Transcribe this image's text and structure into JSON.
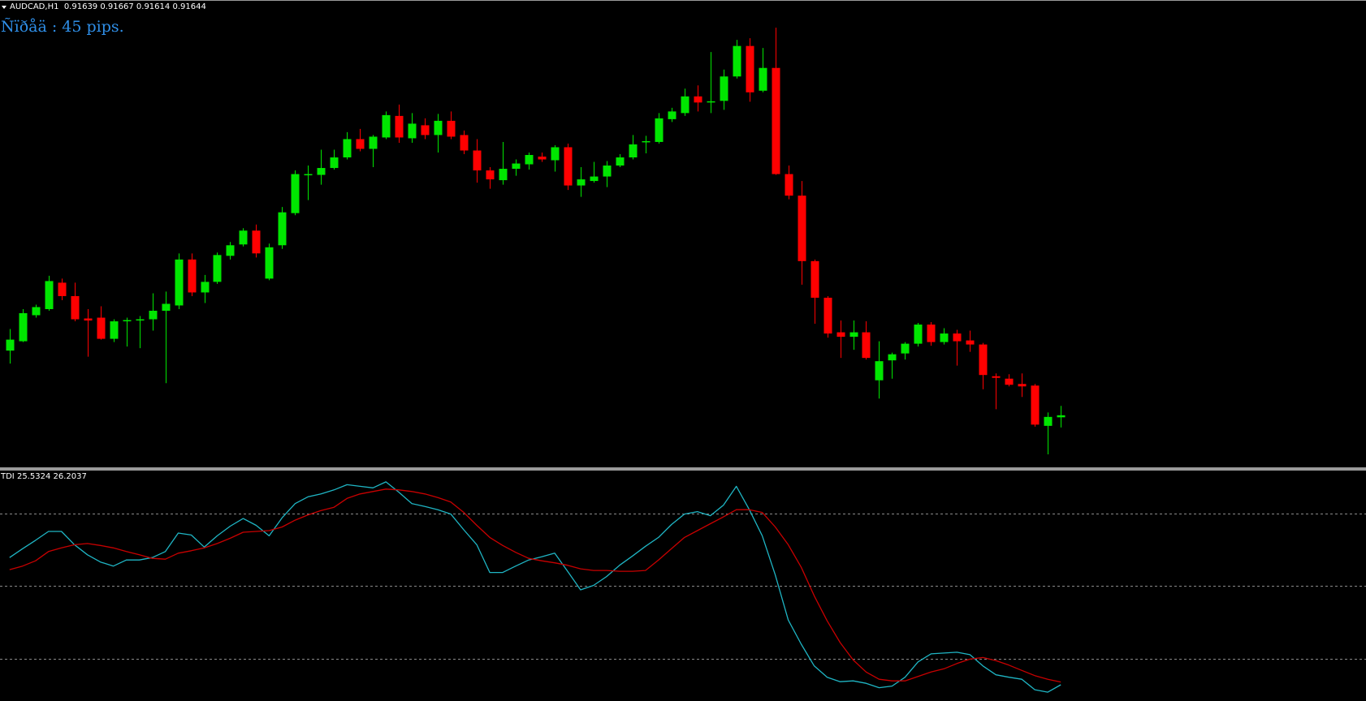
{
  "header": {
    "symbol": "AUDCAD,H1"
  },
  "spread_label": "Ñïðåä : 45 pips.",
  "chart_data": [
    {
      "type": "candlestick",
      "up_color": "#00e600",
      "down_color": "#ff0000",
      "ylim": [
        0.91516,
        0.92665
      ],
      "open": [
        0.91803,
        0.91826,
        0.9189,
        0.91905,
        0.9197,
        0.91937,
        0.91882,
        0.91884,
        0.91832,
        0.91877,
        0.91877,
        0.9188,
        0.91901,
        0.91914,
        0.92027,
        0.91946,
        0.91972,
        0.92036,
        0.92064,
        0.92098,
        0.9198,
        0.92062,
        0.92141,
        0.92235,
        0.92235,
        0.92252,
        0.92278,
        0.92323,
        0.92299,
        0.92327,
        0.9238,
        0.92325,
        0.92357,
        0.92333,
        0.92368,
        0.92333,
        0.92295,
        0.92246,
        0.92222,
        0.9225,
        0.92261,
        0.9228,
        0.92271,
        0.92303,
        0.92209,
        0.9222,
        0.92231,
        0.92258,
        0.92278,
        0.92316,
        0.92316,
        0.92372,
        0.92387,
        0.92428,
        0.92415,
        0.92417,
        0.92477,
        0.92552,
        0.92442,
        0.92498,
        0.92237,
        0.92184,
        0.92023,
        0.91933,
        0.91848,
        0.91837,
        0.91848,
        0.9173,
        0.91779,
        0.91796,
        0.9182,
        0.91867,
        0.91824,
        0.91845,
        0.91828,
        0.91818,
        0.9174,
        0.91734,
        0.91721,
        0.91717,
        0.91618,
        0.91639
      ],
      "high": [
        0.91856,
        0.91905,
        0.91916,
        0.91987,
        0.9198,
        0.9197,
        0.91905,
        0.91912,
        0.9188,
        0.91884,
        0.91888,
        0.91944,
        0.91948,
        0.92042,
        0.92042,
        0.91989,
        0.92044,
        0.9207,
        0.92104,
        0.92113,
        0.92066,
        0.92156,
        0.92246,
        0.92258,
        0.92297,
        0.92297,
        0.9234,
        0.92348,
        0.92333,
        0.92391,
        0.92408,
        0.92387,
        0.92374,
        0.92385,
        0.92391,
        0.92344,
        0.92323,
        0.92254,
        0.92316,
        0.92273,
        0.9229,
        0.9229,
        0.92308,
        0.92312,
        0.92254,
        0.92267,
        0.92269,
        0.92286,
        0.92333,
        0.92331,
        0.92387,
        0.924,
        0.92447,
        0.92455,
        0.92537,
        0.92494,
        0.92567,
        0.92571,
        0.92547,
        0.92597,
        0.92258,
        0.9222,
        0.92027,
        0.91937,
        0.91877,
        0.91877,
        0.91875,
        0.91826,
        0.91798,
        0.91824,
        0.91871,
        0.91873,
        0.91858,
        0.91854,
        0.91852,
        0.91822,
        0.91747,
        0.91745,
        0.91747,
        0.91721,
        0.91651,
        0.91667
      ],
      "low": [
        0.91771,
        0.91824,
        0.91884,
        0.91901,
        0.91927,
        0.91875,
        0.91788,
        0.9183,
        0.91824,
        0.91813,
        0.91809,
        0.91852,
        0.91723,
        0.91905,
        0.91937,
        0.9192,
        0.91967,
        0.92027,
        0.92059,
        0.92032,
        0.91976,
        0.92053,
        0.92136,
        0.92173,
        0.92211,
        0.92248,
        0.92273,
        0.92293,
        0.92254,
        0.92323,
        0.92314,
        0.92314,
        0.92323,
        0.9229,
        0.92323,
        0.92286,
        0.92216,
        0.92201,
        0.92211,
        0.92233,
        0.92248,
        0.92267,
        0.92243,
        0.92198,
        0.92181,
        0.92216,
        0.92205,
        0.92254,
        0.92273,
        0.92288,
        0.92312,
        0.92365,
        0.9238,
        0.92391,
        0.92387,
        0.92395,
        0.92472,
        0.92415,
        0.92438,
        0.92235,
        0.92175,
        0.91965,
        0.91869,
        0.91835,
        0.91785,
        0.91805,
        0.91781,
        0.91685,
        0.91734,
        0.91781,
        0.91813,
        0.91815,
        0.91818,
        0.91766,
        0.918,
        0.91708,
        0.91659,
        0.91715,
        0.91689,
        0.91616,
        0.91548,
        0.91614
      ],
      "close": [
        0.9183,
        0.91895,
        0.9191,
        0.91974,
        0.91937,
        0.9188,
        0.91877,
        0.91832,
        0.91875,
        0.91878,
        0.9188,
        0.91901,
        0.91918,
        0.92027,
        0.91946,
        0.91972,
        0.92038,
        0.92062,
        0.92098,
        0.92042,
        0.92057,
        0.92143,
        0.92237,
        0.92237,
        0.92252,
        0.92278,
        0.92323,
        0.92299,
        0.92329,
        0.92382,
        0.92327,
        0.92361,
        0.92333,
        0.92368,
        0.92329,
        0.92295,
        0.92246,
        0.92224,
        0.9225,
        0.92263,
        0.92284,
        0.92273,
        0.92303,
        0.92209,
        0.92224,
        0.92231,
        0.92258,
        0.92278,
        0.9231,
        0.92318,
        0.92374,
        0.92391,
        0.92428,
        0.92413,
        0.92416,
        0.92477,
        0.92552,
        0.92438,
        0.92498,
        0.92237,
        0.92184,
        0.92023,
        0.91933,
        0.91845,
        0.91837,
        0.91848,
        0.91785,
        0.91777,
        0.91794,
        0.9182,
        0.91867,
        0.91824,
        0.91845,
        0.91826,
        0.91818,
        0.91743,
        0.91736,
        0.91719,
        0.91715,
        0.91621,
        0.9164,
        0.91644
      ]
    },
    {
      "type": "line",
      "title": "TDI",
      "ylim": [
        21.5,
        78.7
      ],
      "levels": [
        32,
        50,
        68
      ],
      "level_color": "#8a8a8a",
      "series": [
        {
          "color": "#1fb5c4",
          "values": [
            57.1,
            59.3,
            61.4,
            63.6,
            63.6,
            60.3,
            57.8,
            56.0,
            55.0,
            56.5,
            56.5,
            57.1,
            58.6,
            63.2,
            62.7,
            59.7,
            62.5,
            64.9,
            66.8,
            65.1,
            62.5,
            67.0,
            70.5,
            72.2,
            72.9,
            73.9,
            75.2,
            74.8,
            74.4,
            75.9,
            73.3,
            70.5,
            69.8,
            69.0,
            67.9,
            64.0,
            60.3,
            53.4,
            53.4,
            55.0,
            56.5,
            57.3,
            58.2,
            53.7,
            49.1,
            50.2,
            52.4,
            55.2,
            57.5,
            59.9,
            62.1,
            65.3,
            67.9,
            68.5,
            67.5,
            70.1,
            74.8,
            69.0,
            62.5,
            52.8,
            41.6,
            35.6,
            30.2,
            27.4,
            26.3,
            26.5,
            25.9,
            24.8,
            25.2,
            27.4,
            31.2,
            33.2,
            33.4,
            33.6,
            33.0,
            30.2,
            28.0,
            27.4,
            26.9,
            24.3,
            23.7,
            25.5324
          ]
        },
        {
          "color": "#c80000",
          "values": [
            54.1,
            55.0,
            56.3,
            58.6,
            59.5,
            60.3,
            60.6,
            60.1,
            59.5,
            58.6,
            57.8,
            56.9,
            56.7,
            58.2,
            58.8,
            59.5,
            60.6,
            61.9,
            63.4,
            63.6,
            63.8,
            64.7,
            66.4,
            67.7,
            68.8,
            69.6,
            71.8,
            72.9,
            73.5,
            74.1,
            73.9,
            73.5,
            72.9,
            72.0,
            70.9,
            68.3,
            65.1,
            62.1,
            60.1,
            58.4,
            56.9,
            56.3,
            55.8,
            55.2,
            54.3,
            53.9,
            53.9,
            53.7,
            53.7,
            53.9,
            56.5,
            59.3,
            62.1,
            63.8,
            65.5,
            67.2,
            69.0,
            69.0,
            68.3,
            64.7,
            60.3,
            54.7,
            47.6,
            41.4,
            36.0,
            31.7,
            28.7,
            26.9,
            26.5,
            26.5,
            27.6,
            28.7,
            29.5,
            30.8,
            31.9,
            32.3,
            31.5,
            30.4,
            29.1,
            27.8,
            26.9,
            26.2037
          ]
        }
      ]
    }
  ]
}
